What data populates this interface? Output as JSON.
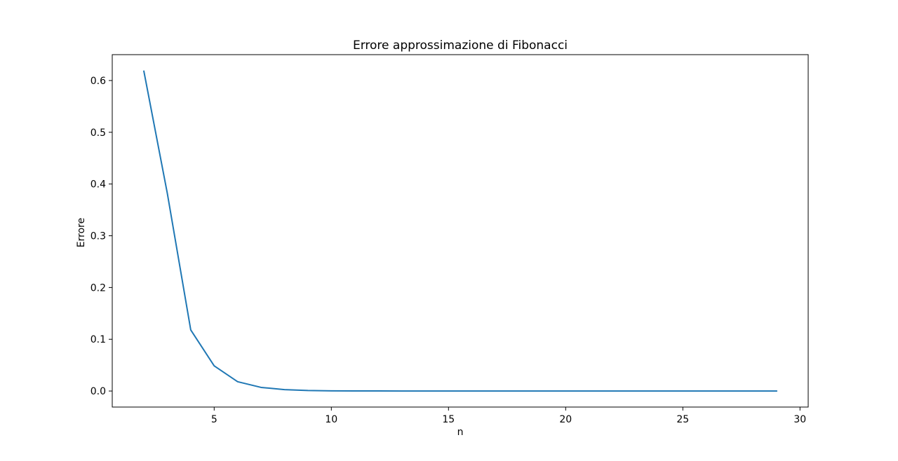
{
  "chart_data": {
    "type": "line",
    "title": "Errore approssimazione di Fibonacci",
    "xlabel": "n",
    "ylabel": "Errore",
    "xlim": [
      0.65,
      30.35
    ],
    "ylim": [
      -0.031,
      0.65
    ],
    "x_ticks": [
      5,
      10,
      15,
      20,
      25,
      30
    ],
    "x_tick_labels": [
      "5",
      "10",
      "15",
      "20",
      "25",
      "30"
    ],
    "y_ticks": [
      0.0,
      0.1,
      0.2,
      0.3,
      0.4,
      0.5,
      0.6
    ],
    "y_tick_labels": [
      "0.0",
      "0.1",
      "0.2",
      "0.3",
      "0.4",
      "0.5",
      "0.6"
    ],
    "grid": false,
    "legend": "none",
    "series": [
      {
        "color": "#1f77b4",
        "x": [
          2,
          3,
          4,
          5,
          6,
          7,
          8,
          9,
          10,
          11,
          12,
          13,
          14,
          15,
          16,
          17,
          18,
          19,
          20,
          21,
          22,
          23,
          24,
          25,
          26,
          27,
          28,
          29
        ],
        "y": [
          0.618,
          0.382,
          0.118,
          0.0486,
          0.018,
          0.00697,
          0.00265,
          0.00101,
          0.000388,
          0.000148,
          5.66e-05,
          2.16e-05,
          8.25e-06,
          3.15e-06,
          1.2e-06,
          4.6e-07,
          1.8e-07,
          7e-08,
          3e-08,
          1e-08,
          0.0,
          0.0,
          0.0,
          0.0,
          0.0,
          0.0,
          0.0,
          0.0
        ]
      }
    ]
  }
}
